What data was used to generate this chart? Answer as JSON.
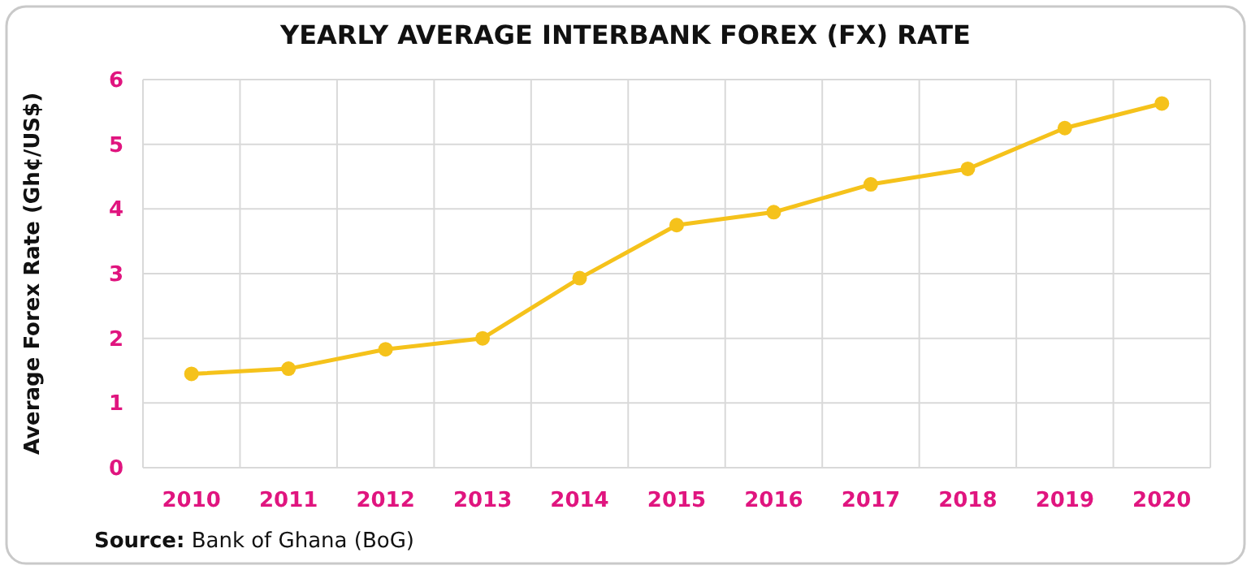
{
  "chart_data": {
    "type": "line",
    "title": "YEARLY AVERAGE INTERBANK FOREX (FX) RATE",
    "ylabel": "Average Forex Rate (Gh¢/US$)",
    "categories": [
      "2010",
      "2011",
      "2012",
      "2013",
      "2014",
      "2015",
      "2016",
      "2017",
      "2018",
      "2019",
      "2020"
    ],
    "series": [
      {
        "color": "#f5c21b",
        "values": [
          1.45,
          1.53,
          1.83,
          2.0,
          2.93,
          3.75,
          3.95,
          4.38,
          4.62,
          5.25,
          5.63
        ]
      }
    ],
    "ylim": [
      0,
      6
    ],
    "yticks": [
      0,
      1,
      2,
      3,
      4,
      5,
      6
    ],
    "grid": true,
    "marker": "circle",
    "line_style": "solid",
    "annotations": [
      "Source: Bank of Ghana (BoG)"
    ]
  }
}
